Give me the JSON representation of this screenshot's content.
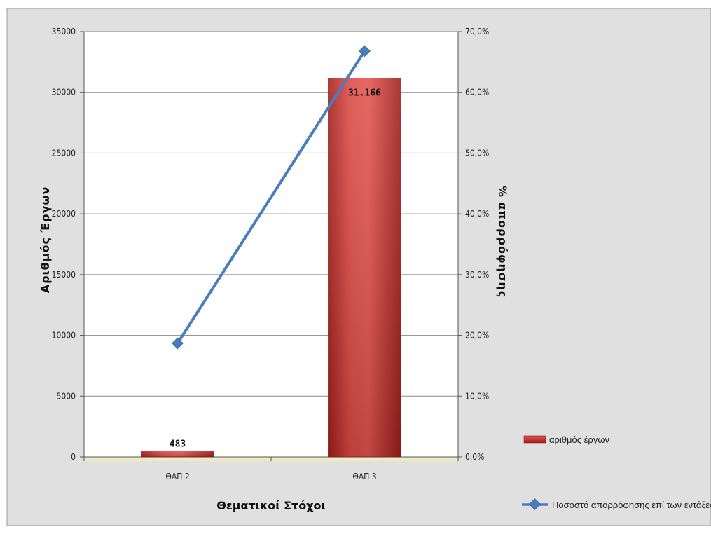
{
  "chart_data": {
    "type": "bar",
    "categories": [
      "ΘΑΠ 2",
      "ΘΑΠ 3"
    ],
    "series": [
      {
        "name": "αριθμός έργων",
        "type": "bar",
        "axis": "left",
        "values": [
          483,
          31166
        ],
        "data_labels": [
          "483",
          "31.166"
        ],
        "color": "#c9302c"
      },
      {
        "name": "Ποσοστό απορρόφησης επί των εντάξεω",
        "type": "line",
        "axis": "right",
        "values": [
          18.7,
          66.8
        ],
        "color": "#4a7ebb"
      }
    ],
    "xlabel": "Θεματικοί Στόχοι",
    "ylabel": "Αριθμός Έργων",
    "y2label": "% απορρόφησης",
    "ylim": [
      0,
      35000
    ],
    "y2lim": [
      0,
      70
    ],
    "yticks": [
      "0",
      "5000",
      "10000",
      "15000",
      "20000",
      "25000",
      "30000",
      "35000"
    ],
    "y2ticks": [
      "0,0%",
      "10,0%",
      "20,0%",
      "30,0%",
      "40,0%",
      "50,0%",
      "60,0%",
      "70,0%"
    ],
    "grid": true,
    "legend_position": "right",
    "plot_background": "#ffffff",
    "chart_background": "#e0e0e0"
  }
}
